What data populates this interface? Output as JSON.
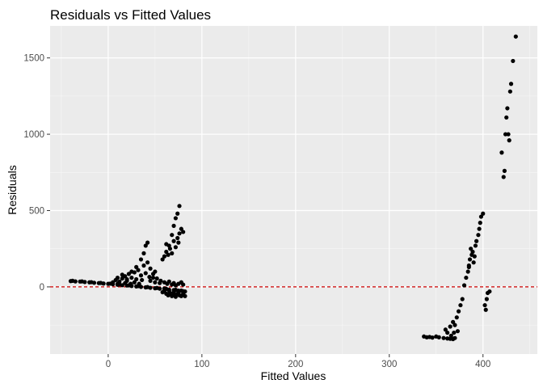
{
  "chart_data": {
    "type": "scatter",
    "title": "Residuals vs Fitted Values",
    "xlabel": "Fitted Values",
    "ylabel": "Residuals",
    "xlim": [
      -62,
      458
    ],
    "ylim": [
      -440,
      1710
    ],
    "x_ticks": [
      0,
      100,
      200,
      300,
      400
    ],
    "y_ticks": [
      0,
      500,
      1000,
      1500
    ],
    "grid": true,
    "legend": "none",
    "reference_line": {
      "y": 0,
      "style": "dashed",
      "color": "#cc0000"
    },
    "colors": {
      "panel": "#ebebeb",
      "grid": "#ffffff",
      "point": "#000000"
    },
    "series": [
      {
        "points": [
          [
            -40,
            38
          ],
          [
            -35,
            36
          ],
          [
            -30,
            35
          ],
          [
            -25,
            32
          ],
          [
            -20,
            30
          ],
          [
            -15,
            27
          ],
          [
            -10,
            25
          ],
          [
            -5,
            22
          ],
          [
            0,
            20
          ],
          [
            5,
            17
          ],
          [
            10,
            14
          ],
          [
            15,
            11
          ],
          [
            20,
            9
          ],
          [
            25,
            6
          ],
          [
            30,
            3
          ],
          [
            35,
            0
          ],
          [
            40,
            -3
          ],
          [
            45,
            -6
          ],
          [
            50,
            -9
          ],
          [
            55,
            -12
          ],
          [
            60,
            -15
          ],
          [
            65,
            -18
          ],
          [
            70,
            -21
          ],
          [
            75,
            -25
          ],
          [
            80,
            -28
          ],
          [
            -38,
            40
          ],
          [
            -28,
            36
          ],
          [
            -18,
            31
          ],
          [
            -8,
            26
          ],
          [
            2,
            21
          ],
          [
            12,
            16
          ],
          [
            22,
            10
          ],
          [
            32,
            5
          ],
          [
            42,
            -1
          ],
          [
            52,
            -7
          ],
          [
            62,
            -13
          ],
          [
            72,
            -19
          ],
          [
            78,
            -24
          ],
          [
            5,
            30
          ],
          [
            8,
            45
          ],
          [
            10,
            60
          ],
          [
            12,
            35
          ],
          [
            15,
            55
          ],
          [
            18,
            70
          ],
          [
            20,
            40
          ],
          [
            22,
            85
          ],
          [
            25,
            60
          ],
          [
            28,
            95
          ],
          [
            30,
            50
          ],
          [
            32,
            110
          ],
          [
            35,
            75
          ],
          [
            38,
            140
          ],
          [
            40,
            90
          ],
          [
            42,
            160
          ],
          [
            45,
            120
          ],
          [
            48,
            60
          ],
          [
            50,
            100
          ],
          [
            35,
            180
          ],
          [
            38,
            220
          ],
          [
            40,
            270
          ],
          [
            42,
            290
          ],
          [
            30,
            130
          ],
          [
            25,
            100
          ],
          [
            15,
            80
          ],
          [
            20,
            50
          ],
          [
            28,
            30
          ],
          [
            33,
            20
          ],
          [
            45,
            40
          ],
          [
            50,
            30
          ],
          [
            55,
            25
          ],
          [
            10,
            20
          ],
          [
            18,
            25
          ],
          [
            24,
            20
          ],
          [
            36,
            45
          ],
          [
            44,
            65
          ],
          [
            48,
            85
          ],
          [
            52,
            55
          ],
          [
            56,
            40
          ],
          [
            60,
            30
          ],
          [
            63,
            20
          ],
          [
            65,
            35
          ],
          [
            68,
            15
          ],
          [
            70,
            25
          ],
          [
            72,
            10
          ],
          [
            75,
            20
          ],
          [
            78,
            30
          ],
          [
            80,
            15
          ],
          [
            60,
            -30
          ],
          [
            62,
            -45
          ],
          [
            64,
            -55
          ],
          [
            66,
            -40
          ],
          [
            68,
            -60
          ],
          [
            70,
            -50
          ],
          [
            72,
            -65
          ],
          [
            74,
            -45
          ],
          [
            76,
            -55
          ],
          [
            78,
            -60
          ],
          [
            80,
            -50
          ],
          [
            58,
            -35
          ],
          [
            60,
            -10
          ],
          [
            65,
            -25
          ],
          [
            70,
            -35
          ],
          [
            75,
            -40
          ],
          [
            80,
            -45
          ],
          [
            82,
            -30
          ],
          [
            82,
            -60
          ],
          [
            58,
            180
          ],
          [
            60,
            200
          ],
          [
            62,
            230
          ],
          [
            64,
            210
          ],
          [
            65,
            270
          ],
          [
            66,
            250
          ],
          [
            68,
            220
          ],
          [
            70,
            300
          ],
          [
            72,
            260
          ],
          [
            74,
            320
          ],
          [
            75,
            290
          ],
          [
            76,
            350
          ],
          [
            78,
            380
          ],
          [
            80,
            360
          ],
          [
            72,
            450
          ],
          [
            74,
            480
          ],
          [
            76,
            530
          ],
          [
            70,
            400
          ],
          [
            68,
            340
          ],
          [
            62,
            280
          ]
        ]
      },
      {
        "points": [
          [
            337,
            -325
          ],
          [
            340,
            -330
          ],
          [
            343,
            -328
          ],
          [
            346,
            -332
          ],
          [
            350,
            -325
          ],
          [
            353,
            -330
          ],
          [
            358,
            -335
          ],
          [
            362,
            -338
          ],
          [
            365,
            -340
          ],
          [
            368,
            -342
          ],
          [
            370,
            -335
          ],
          [
            360,
            -280
          ],
          [
            362,
            -300
          ],
          [
            365,
            -260
          ],
          [
            368,
            -230
          ],
          [
            370,
            -250
          ],
          [
            372,
            -200
          ],
          [
            374,
            -160
          ],
          [
            376,
            -120
          ],
          [
            378,
            -80
          ],
          [
            373,
            -290
          ],
          [
            366,
            -320
          ],
          [
            369,
            -300
          ],
          [
            380,
            10
          ],
          [
            382,
            60
          ],
          [
            384,
            100
          ],
          [
            385,
            140
          ],
          [
            386,
            180
          ],
          [
            388,
            210
          ],
          [
            389,
            230
          ],
          [
            390,
            160
          ],
          [
            392,
            270
          ],
          [
            393,
            300
          ],
          [
            395,
            340
          ],
          [
            396,
            380
          ],
          [
            397,
            420
          ],
          [
            398,
            460
          ],
          [
            400,
            480
          ],
          [
            402,
            -120
          ],
          [
            403,
            -150
          ],
          [
            404,
            -80
          ],
          [
            405,
            -40
          ],
          [
            407,
            -30
          ],
          [
            385,
            130
          ],
          [
            387,
            250
          ],
          [
            391,
            200
          ],
          [
            420,
            880
          ],
          [
            422,
            720
          ],
          [
            423,
            760
          ],
          [
            424,
            1000
          ],
          [
            425,
            1110
          ],
          [
            426,
            1170
          ],
          [
            427,
            1000
          ],
          [
            428,
            960
          ],
          [
            429,
            1280
          ],
          [
            430,
            1330
          ],
          [
            432,
            1480
          ],
          [
            435,
            1640
          ]
        ]
      }
    ]
  }
}
